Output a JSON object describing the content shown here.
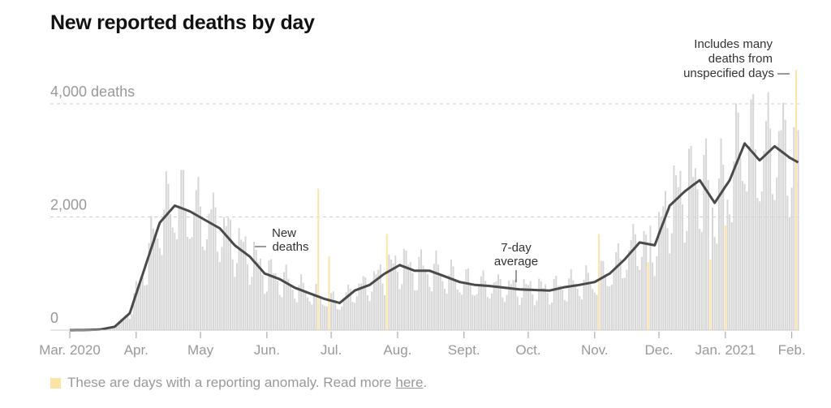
{
  "chart_data": {
    "type": "bar",
    "title": "New reported deaths by day",
    "start_date": "2020-03-01",
    "num_days": 341,
    "ylim": [
      0,
      4000
    ],
    "yticks": [
      {
        "value": 0,
        "label": "0"
      },
      {
        "value": 2000,
        "label": "2,000"
      },
      {
        "value": 4000,
        "label": "4,000 deaths"
      }
    ],
    "xticks": [
      {
        "day": 0,
        "label": "Mar. 2020"
      },
      {
        "day": 31,
        "label": "Apr."
      },
      {
        "day": 61,
        "label": "May"
      },
      {
        "day": 92,
        "label": "Jun."
      },
      {
        "day": 122,
        "label": "Jul."
      },
      {
        "day": 153,
        "label": "Aug."
      },
      {
        "day": 184,
        "label": "Sept."
      },
      {
        "day": 214,
        "label": "Oct."
      },
      {
        "day": 245,
        "label": "Nov."
      },
      {
        "day": 275,
        "label": "Dec."
      },
      {
        "day": 306,
        "label": "Jan. 2021"
      },
      {
        "day": 337,
        "label": "Feb."
      }
    ],
    "avg_weekly": [
      0,
      2,
      10,
      60,
      300,
      1100,
      1900,
      2200,
      2100,
      1950,
      1800,
      1500,
      1300,
      1000,
      900,
      750,
      650,
      550,
      480,
      700,
      800,
      1000,
      1150,
      1050,
      1050,
      950,
      850,
      800,
      780,
      750,
      720,
      710,
      700,
      760,
      800,
      850,
      1000,
      1250,
      1550,
      1500,
      2200,
      2450,
      2650,
      2250,
      2650,
      3300,
      3000,
      3250,
      3050,
      2900
    ],
    "weekday_factors": [
      0.7,
      0.75,
      1.15,
      1.25,
      1.2,
      1.1,
      0.85
    ],
    "anomalies": [
      {
        "day": 116,
        "value": 2500
      },
      {
        "day": 121,
        "value": 1300
      },
      {
        "day": 148,
        "value": 1700
      },
      {
        "day": 247,
        "value": 1700
      },
      {
        "day": 270,
        "value": 1200
      },
      {
        "day": 299,
        "value": 1250
      },
      {
        "day": 306,
        "value": 1850
      },
      {
        "day": 339,
        "value": 4600
      }
    ],
    "series": [
      {
        "name": "New deaths",
        "style": "bars"
      },
      {
        "name": "7-day average",
        "style": "line"
      }
    ],
    "annotations": {
      "new_deaths": [
        "New",
        "deaths"
      ],
      "avg": [
        "7-day",
        "average"
      ],
      "spike": [
        "Includes many",
        "deaths from",
        "unspecified days —"
      ]
    },
    "colors": {
      "bar": "#d6d6d6",
      "anomaly": "#fde4a6",
      "line": "#4a4a4a"
    }
  },
  "legend": {
    "text": "These are days with a reporting anomaly. Read more",
    "link": "here",
    "end": "."
  }
}
